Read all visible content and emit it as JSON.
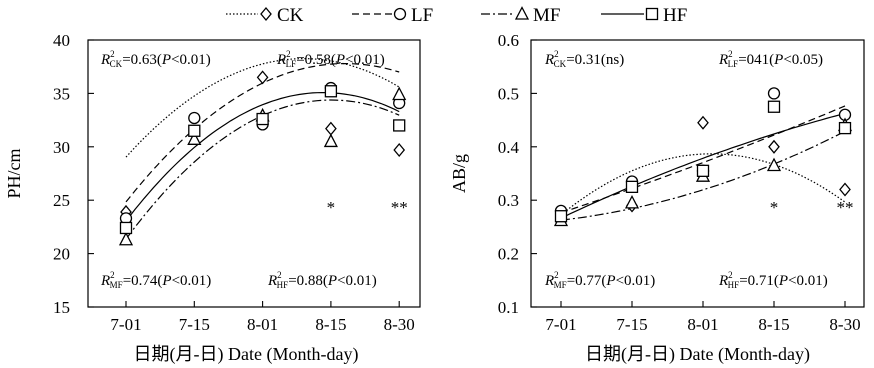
{
  "legend": [
    {
      "label": "CK",
      "marker": "diamond",
      "dash": "1.5,2"
    },
    {
      "label": "LF",
      "marker": "circle",
      "dash": "7,4"
    },
    {
      "label": "MF",
      "marker": "triangle",
      "dash": "9,3,2,3"
    },
    {
      "label": "HF",
      "marker": "square",
      "dash": ""
    }
  ],
  "chart_data": [
    {
      "type": "scatter",
      "xlabel": "日期(月-日) Date (Month-day)",
      "ylabel": "PH/cm",
      "categories": [
        "7-01",
        "7-15",
        "8-01",
        "8-15",
        "8-30"
      ],
      "yticks": [
        "15",
        "20",
        "25",
        "30",
        "35",
        "40"
      ],
      "ylim": [
        15,
        40
      ],
      "series": [
        {
          "name": "CK",
          "x": [
            1,
            2,
            3,
            4,
            5
          ],
          "values": [
            23.9,
            31.4,
            36.5,
            31.7,
            29.7
          ],
          "fit": [
            20.6,
            9.8,
            -1.36
          ]
        },
        {
          "name": "LF",
          "x": [
            1,
            2,
            3,
            4,
            5
          ],
          "values": [
            23.3,
            32.7,
            32.1,
            35.5,
            34.1
          ],
          "fit": [
            15.5,
            10.6,
            -1.26
          ]
        },
        {
          "name": "MF",
          "x": [
            1,
            2,
            3,
            4,
            5
          ],
          "values": [
            21.3,
            30.7,
            32.9,
            30.5,
            34.9
          ],
          "fit": [
            11.26,
            11.54,
            -1.44
          ]
        },
        {
          "name": "HF",
          "x": [
            1,
            2,
            3,
            4,
            5
          ],
          "values": [
            22.4,
            31.5,
            32.6,
            35.2,
            32.0
          ],
          "fit": [
            13.3,
            11.2,
            -1.44
          ]
        }
      ],
      "annotations": [
        {
          "id": "ck",
          "sub": "CK",
          "value": "=0.63(",
          "p": "P",
          "rest": "<0.01)"
        },
        {
          "id": "lf",
          "sub": "LF",
          "value": "=0.58(",
          "p": "P",
          "rest": "<0.01)"
        },
        {
          "id": "mf",
          "sub": "MF",
          "value": "=0.74(",
          "p": "P",
          "rest": "<0.01)"
        },
        {
          "id": "hf",
          "sub": "HF",
          "value": "=0.88(",
          "p": "P",
          "rest": "<0.01)"
        }
      ],
      "significance": [
        {
          "category": "8-15",
          "mark": "*"
        },
        {
          "category": "8-30",
          "mark": "**"
        }
      ]
    },
    {
      "type": "scatter",
      "xlabel": "日期(月-日) Date (Month-day)",
      "ylabel": "AB/g",
      "categories": [
        "7-01",
        "7-15",
        "8-01",
        "8-15",
        "8-30"
      ],
      "yticks": [
        "0.1",
        "0.2",
        "0.3",
        "0.4",
        "0.5",
        "0.6"
      ],
      "ylim": [
        0.1,
        0.6
      ],
      "series": [
        {
          "name": "CK",
          "x": [
            1,
            2,
            3,
            4,
            5
          ],
          "values": [
            0.275,
            0.29,
            0.445,
            0.4,
            0.32
          ],
          "fit": [
            0.139,
            0.159,
            -0.0255
          ]
        },
        {
          "name": "LF",
          "x": [
            1,
            2,
            3,
            4,
            5
          ],
          "values": [
            0.28,
            0.335,
            0.355,
            0.5,
            0.46
          ],
          "fit": [
            0.234,
            0.041,
            0.0015
          ]
        },
        {
          "name": "MF",
          "x": [
            1,
            2,
            3,
            4,
            5
          ],
          "values": [
            0.262,
            0.295,
            0.345,
            0.365,
            0.44
          ],
          "fit": [
            0.254,
            0.002,
            0.0066
          ]
        },
        {
          "name": "HF",
          "x": [
            1,
            2,
            3,
            4,
            5
          ],
          "values": [
            0.27,
            0.325,
            0.355,
            0.475,
            0.435
          ],
          "fit": [
            0.2,
            0.07,
            -0.0035
          ]
        }
      ],
      "annotations": [
        {
          "id": "ck",
          "sub": "CK",
          "value": "=0.31(ns)",
          "p": "",
          "rest": ""
        },
        {
          "id": "lf",
          "sub": "LF",
          "value": "=041(",
          "p": "P",
          "rest": "<0.05)"
        },
        {
          "id": "mf",
          "sub": "MF",
          "value": "=0.77(",
          "p": "P",
          "rest": "<0.01)"
        },
        {
          "id": "hf",
          "sub": "HF",
          "value": "=0.71(",
          "p": "P",
          "rest": "<0.01)"
        }
      ],
      "significance": [
        {
          "category": "8-15",
          "mark": "*"
        },
        {
          "category": "8-30",
          "mark": "**"
        }
      ]
    }
  ]
}
